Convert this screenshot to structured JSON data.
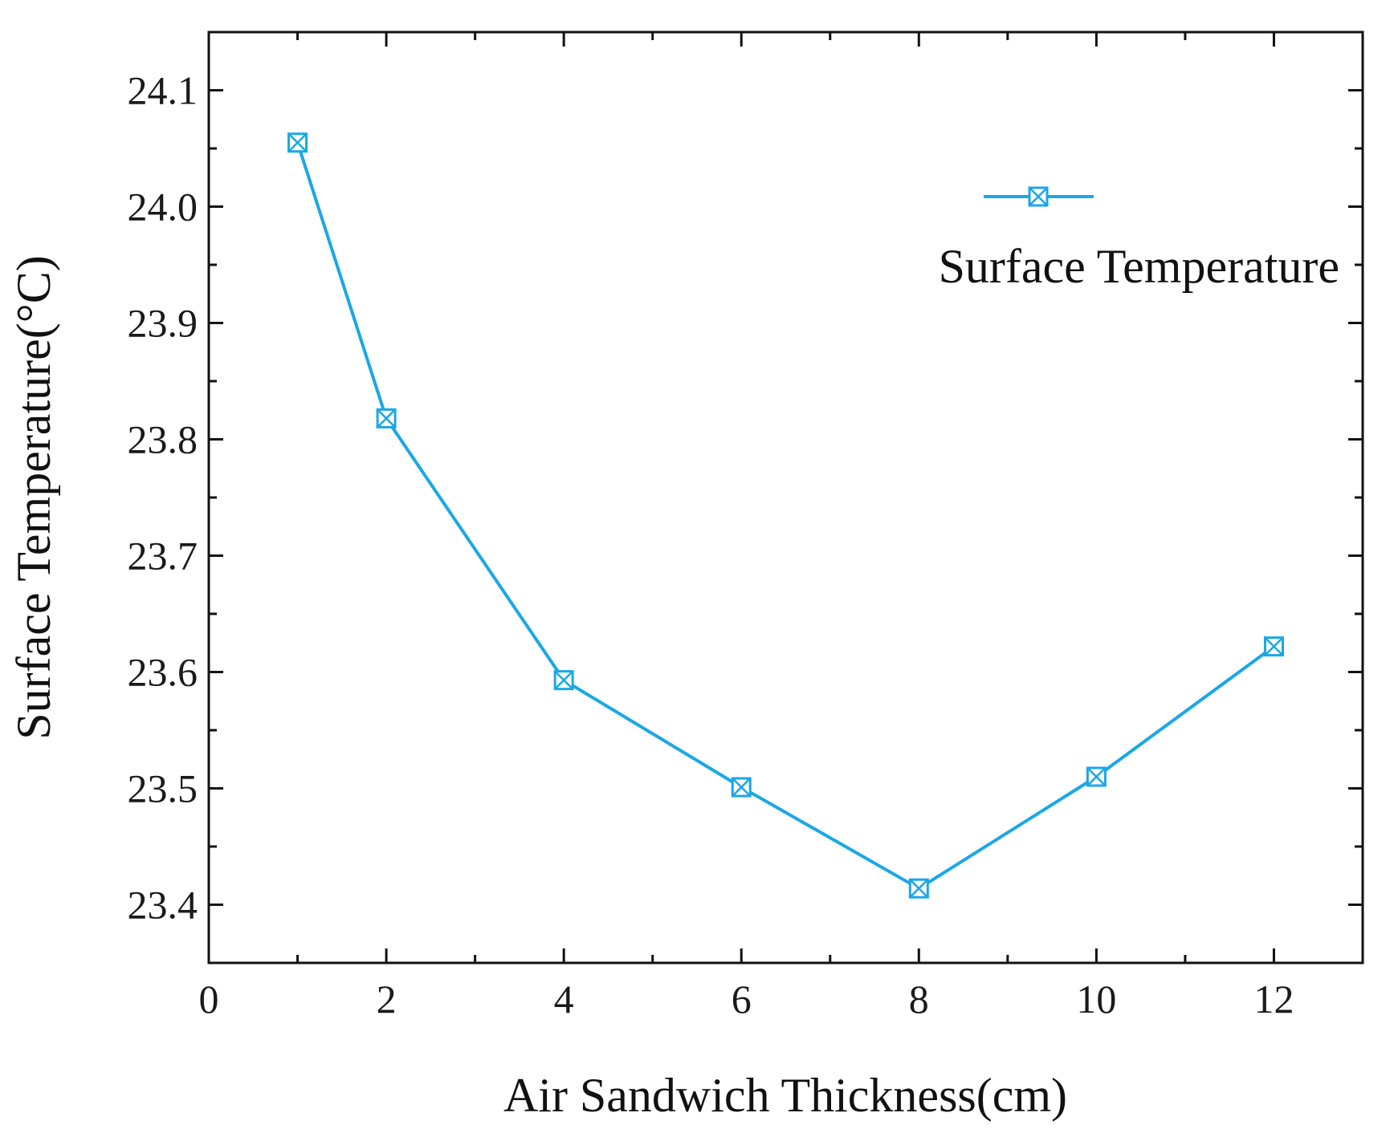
{
  "chart_data": {
    "type": "line",
    "xlabel": "Air Sandwich Thickness(cm)",
    "ylabel": "Surface Temperature(°C)",
    "xlim": [
      0,
      13
    ],
    "ylim": [
      23.35,
      24.15
    ],
    "x_ticks": [
      0,
      2,
      4,
      6,
      8,
      10,
      12
    ],
    "x_tick_labels": [
      "0",
      "2",
      "4",
      "6",
      "8",
      "10",
      "12"
    ],
    "y_ticks": [
      23.4,
      23.5,
      23.6,
      23.7,
      23.8,
      23.9,
      24.0,
      24.1
    ],
    "y_tick_labels": [
      "23.4",
      "23.5",
      "23.6",
      "23.7",
      "23.8",
      "23.9",
      "24.0",
      "24.1"
    ],
    "grid": false,
    "legend_position": "top-right",
    "series": [
      {
        "name": "Surface Temperature",
        "color": "#1aa7e8",
        "marker": "square-x",
        "x": [
          1,
          2,
          4,
          6,
          8,
          10,
          12
        ],
        "y": [
          24.055,
          23.818,
          23.593,
          23.501,
          23.414,
          23.51,
          23.622
        ]
      }
    ]
  }
}
